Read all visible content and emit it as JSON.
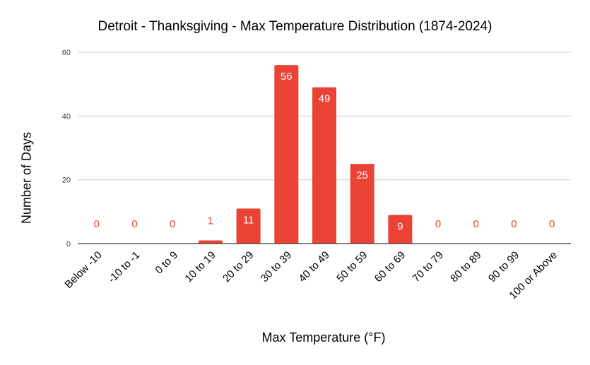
{
  "chart_data": {
    "type": "bar",
    "title": "Detroit - Thanksgiving - Max Temperature Distribution (1874-2024)",
    "xlabel": "Max Temperature (°F)",
    "ylabel": "Number of Days",
    "categories": [
      "Below -10",
      "-10 to -1",
      "0 to 9",
      "10 to 19",
      "20 to 29",
      "30 to 39",
      "40 to 49",
      "50 to 59",
      "60 to 69",
      "70 to 79",
      "80 to 89",
      "90 to 99",
      "100 or Above"
    ],
    "values": [
      0,
      0,
      0,
      1,
      11,
      56,
      49,
      25,
      9,
      0,
      0,
      0,
      0
    ],
    "ylim": [
      0,
      60
    ],
    "yticks": [
      0,
      20,
      40,
      60
    ],
    "grid": true,
    "legend": "none",
    "bar_color": "#ea4335",
    "data_labels": true
  }
}
